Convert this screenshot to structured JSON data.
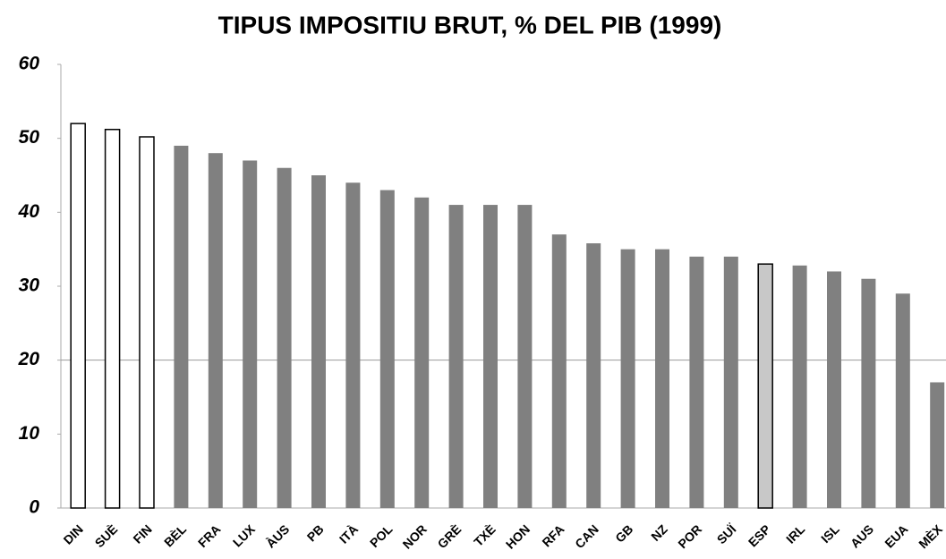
{
  "chart_data": {
    "type": "bar",
    "title": "TIPUS IMPOSITIU BRUT, % DEL PIB (1999)",
    "categories": [
      "DIN",
      "SUÈ",
      "FIN",
      "BÈL",
      "FRA",
      "LUX",
      "ÀUS",
      "PB",
      "ITÀ",
      "POL",
      "NOR",
      "GRÈ",
      "TXÈ",
      "HON",
      "RFA",
      "CAN",
      "GB",
      "NZ",
      "POR",
      "SUÏ",
      "ESP",
      "IRL",
      "ISL",
      "AUS",
      "EUA",
      "MÈX"
    ],
    "values": [
      52,
      51.2,
      50.2,
      49,
      48,
      47,
      46,
      45,
      44,
      43,
      42,
      41,
      41,
      41,
      37,
      35.8,
      35,
      35,
      34,
      34,
      33,
      32.8,
      32,
      31,
      29,
      17
    ],
    "colors": [
      "#ffffff",
      "#ffffff",
      "#ffffff",
      "#808080",
      "#808080",
      "#808080",
      "#808080",
      "#808080",
      "#808080",
      "#808080",
      "#808080",
      "#808080",
      "#808080",
      "#808080",
      "#808080",
      "#808080",
      "#808080",
      "#808080",
      "#808080",
      "#808080",
      "#c8c8c8",
      "#808080",
      "#808080",
      "#808080",
      "#808080",
      "#808080"
    ],
    "ylim": [
      0,
      60
    ],
    "yticks": [
      0,
      10,
      20,
      30,
      40,
      50,
      60
    ],
    "reference_line": 20
  }
}
